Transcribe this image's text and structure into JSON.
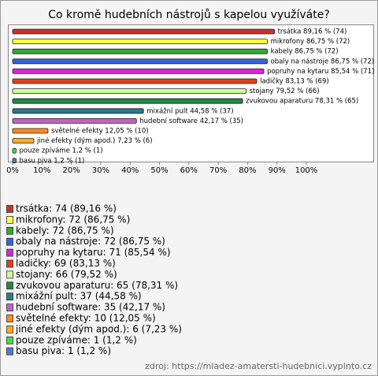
{
  "chart_data": {
    "type": "bar",
    "orientation": "horizontal",
    "title": "Co kromě hudebních nástrojů s kapelou využíváte?",
    "categories": [
      "trsátka",
      "mikrofony",
      "kabely",
      "obaly na nástroje",
      "popruhy na kytaru",
      "ladičky",
      "stojany",
      "zvukovou aparaturu",
      "mixážní pult",
      "hudební software",
      "světelné efekty",
      "jiné efekty (dým apod.)",
      "pouze zpíváme",
      "basu piva"
    ],
    "values": [
      89.16,
      86.75,
      86.75,
      86.75,
      85.54,
      83.13,
      79.52,
      78.31,
      44.58,
      42.17,
      12.05,
      7.23,
      1.2,
      1.2
    ],
    "value_labels": [
      "trsátka 89,16 % (74)",
      "mikrofony 86,75 % (72)",
      "kabely 86,75 % (72)",
      "obaly na nástroje 86,75 % (72)",
      "popruhy na kytaru 85,54 % (71)",
      "ladičky 83,13 % (69)",
      "stojany 79,52 % (66)",
      "zvukovou aparaturu 78,31 % (65)",
      "mixážní pult 44,58 % (37)",
      "hudební software 42,17 % (35)",
      "světelné efekty 12,05 % (10)",
      "jiné efekty (dým apod.) 7,23 % (6)",
      "pouze zpíváme 1,2 % (1)",
      "basu piva 1,2 % (1)"
    ],
    "legend_labels": [
      "trsátka: 74 (89,16 %)",
      "mikrofony: 72 (86,75 %)",
      "kabely: 72 (86,75 %)",
      "obaly na nástroje: 72 (86,75 %)",
      "popruhy na kytaru: 71 (85,54 %)",
      "ladičky: 69 (83,13 %)",
      "stojany: 66 (79,52 %)",
      "zvukovou aparaturu: 65 (78,31 %)",
      "mixážní pult: 37 (44,58 %)",
      "hudební software: 35 (42,17 %)",
      "světelné efekty: 10 (12,05 %)",
      "jiné efekty (dým apod.): 6 (7,23 %)",
      "pouze zpíváme: 1 (1,2 %)",
      "basu piva: 1 (1,2 %)"
    ],
    "colors": [
      "#c8302a",
      "#ffff44",
      "#33aa33",
      "#3366dd",
      "#dd22dd",
      "#e0401a",
      "#ccff99",
      "#228844",
      "#2a7a8a",
      "#bb66bb",
      "#ff8822",
      "#ffaa22",
      "#44dd44",
      "#5577cc"
    ],
    "xlim": [
      0,
      123
    ],
    "xticks": [
      {
        "value": 0,
        "label": "0%"
      },
      {
        "value": 10,
        "label": "10%"
      },
      {
        "value": 20,
        "label": "20%"
      },
      {
        "value": 30,
        "label": "30%"
      },
      {
        "value": 40,
        "label": "40%"
      },
      {
        "value": 50,
        "label": "50%"
      },
      {
        "value": 60,
        "label": "60%"
      },
      {
        "value": 70,
        "label": "70%"
      },
      {
        "value": 80,
        "label": "80%"
      },
      {
        "value": 90,
        "label": "90%"
      },
      {
        "value": 100,
        "label": "100%"
      }
    ],
    "source": "zdroj: https://mladez-amatersti-hudebnici.vyplnto.cz"
  }
}
